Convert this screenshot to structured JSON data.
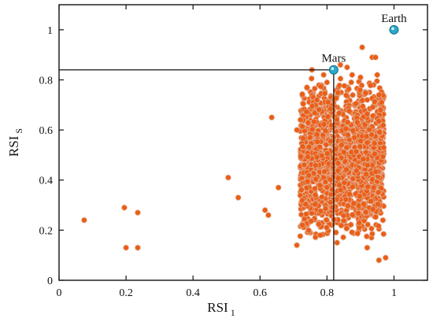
{
  "chart_data": {
    "type": "scatter",
    "xlabel": "RSI",
    "xlabel_sub": "1",
    "ylabel": "RSI",
    "ylabel_sub": "S",
    "xlim": [
      0,
      1.1
    ],
    "ylim": [
      0,
      1.1
    ],
    "xticks": [
      "0",
      "0.2",
      "0.4",
      "0.6",
      "0.8",
      "1"
    ],
    "yticks": [
      "0",
      "0.2",
      "0.4",
      "0.6",
      "0.8",
      "1"
    ],
    "grid": false,
    "colors": {
      "points": "#f05a1a",
      "points_halo": "#f6b7c0",
      "highlight": "#2aa8c8",
      "axis": "#111111"
    },
    "annotations": [
      {
        "label": "Earth",
        "x": 1.0,
        "y": 1.0
      },
      {
        "label": "Mars",
        "x": 0.82,
        "y": 0.84
      }
    ],
    "reference_lines": {
      "x": 0.82,
      "y": 0.84
    },
    "series": [
      {
        "values": [
          [
            0.075,
            0.24
          ],
          [
            0.195,
            0.29
          ],
          [
            0.2,
            0.13
          ],
          [
            0.235,
            0.13
          ],
          [
            0.235,
            0.27
          ],
          [
            0.505,
            0.41
          ],
          [
            0.535,
            0.33
          ],
          [
            0.615,
            0.28
          ],
          [
            0.625,
            0.26
          ],
          [
            0.635,
            0.65
          ],
          [
            0.655,
            0.37
          ],
          [
            0.71,
            0.14
          ],
          [
            0.71,
            0.6
          ],
          [
            0.74,
            0.77
          ],
          [
            0.755,
            0.84
          ],
          [
            0.79,
            0.82
          ],
          [
            0.8,
            0.79
          ],
          [
            0.84,
            0.86
          ],
          [
            0.86,
            0.85
          ],
          [
            0.875,
            0.82
          ],
          [
            0.9,
            0.81
          ],
          [
            0.905,
            0.93
          ],
          [
            0.935,
            0.89
          ],
          [
            0.945,
            0.89
          ],
          [
            0.95,
            0.82
          ],
          [
            0.955,
            0.74
          ],
          [
            0.96,
            0.68
          ],
          [
            0.955,
            0.08
          ],
          [
            0.975,
            0.09
          ],
          [
            0.78,
            0.18
          ],
          [
            0.83,
            0.15
          ],
          [
            0.92,
            0.13
          ],
          [
            0.745,
            0.2
          ],
          [
            0.77,
            0.72
          ],
          [
            0.92,
            0.72
          ]
        ],
        "dense_cluster": {
          "x_range": [
            0.72,
            0.97
          ],
          "y_range": [
            0.15,
            0.82
          ],
          "count": 1600
        }
      }
    ]
  }
}
